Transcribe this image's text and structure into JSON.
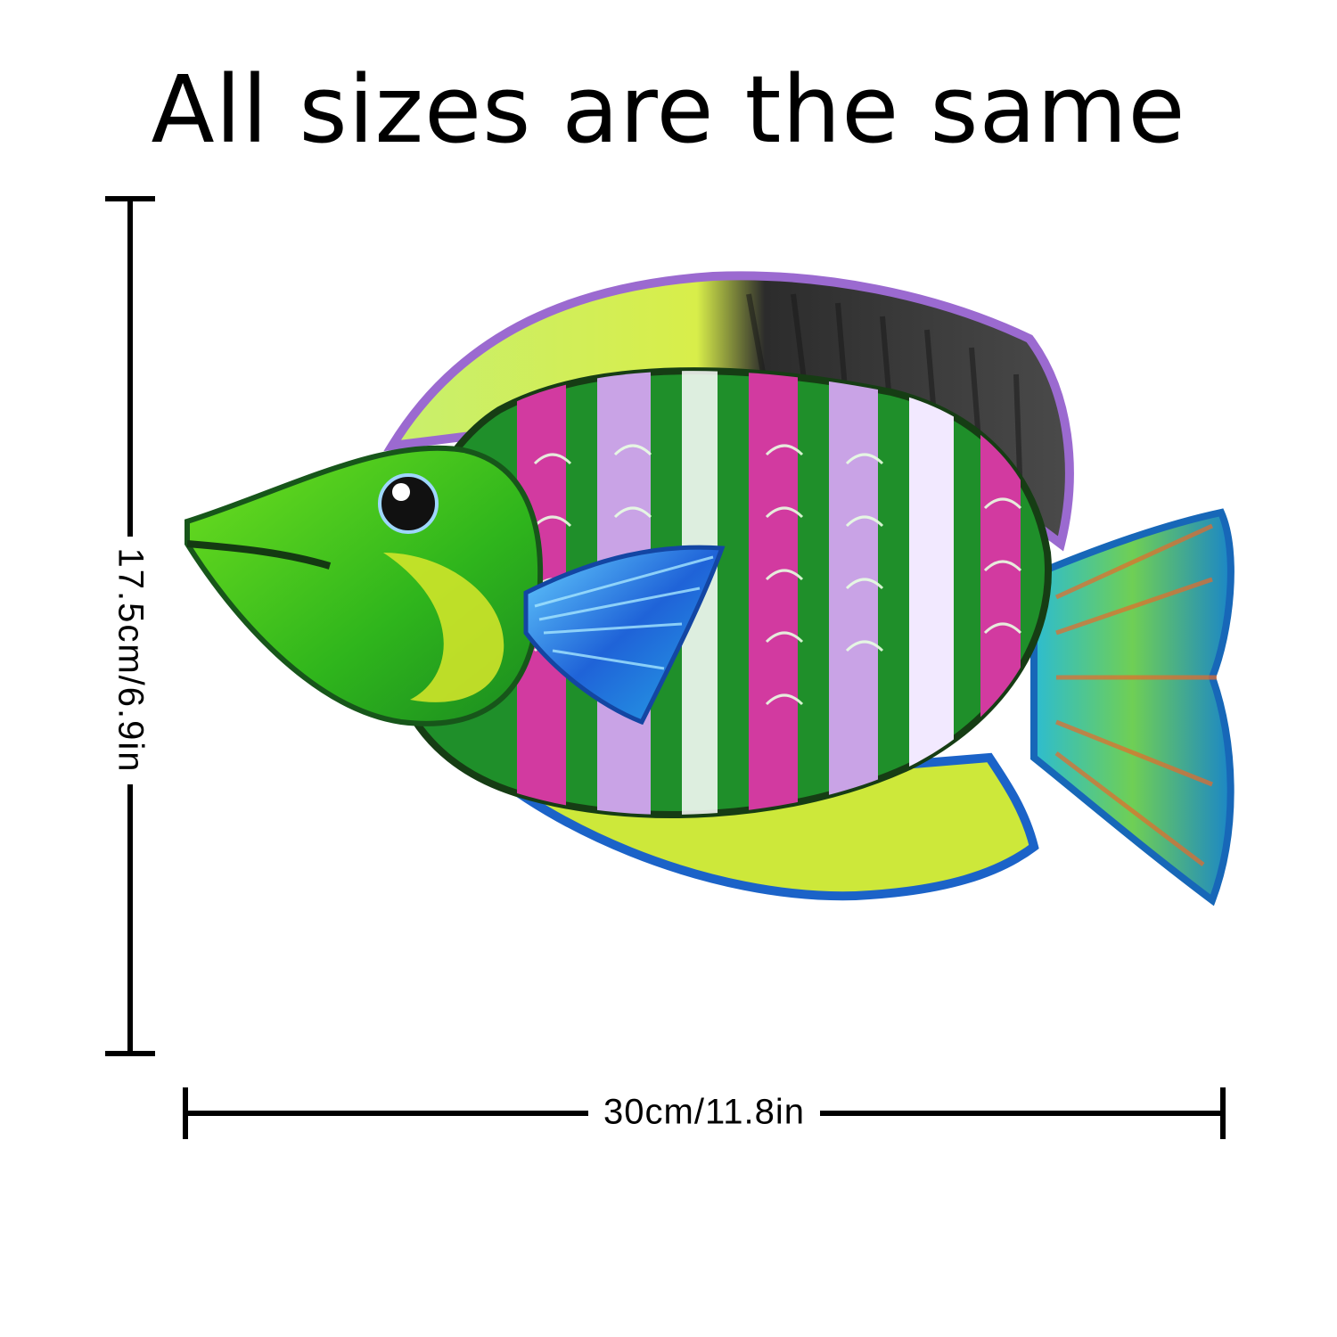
{
  "headline": "All sizes are the same",
  "dimensions": {
    "height_label": "17.5cm/6.9in",
    "width_label": "30cm/11.8in"
  },
  "colors": {
    "body_green": "#1f8f2a",
    "head_green": "#5ecf1a",
    "stripe_pink": "#d23aa0",
    "stripe_lilac": "#c9a3e6",
    "fin_blue": "#1f63d8",
    "dorsal_dark": "#2b2b2b",
    "tail_cyan": "#23a7c9",
    "yellow": "#d8e82a"
  }
}
